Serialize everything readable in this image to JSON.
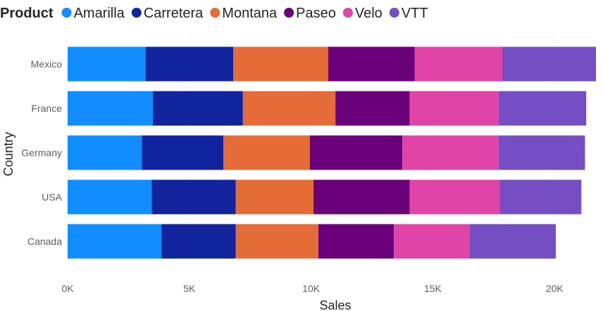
{
  "chart_data": {
    "type": "bar",
    "orientation": "horizontal",
    "stacked": true,
    "legend_title": "Product",
    "legend_position": "top-left",
    "categories": [
      "Mexico",
      "France",
      "Germany",
      "USA",
      "Canada"
    ],
    "series": [
      {
        "name": "Amarilla",
        "color": "#118DFF",
        "values": [
          3200,
          3500,
          3050,
          3450,
          3850
        ]
      },
      {
        "name": "Carretera",
        "color": "#12239E",
        "values": [
          3600,
          3700,
          3350,
          3450,
          3050
        ]
      },
      {
        "name": "Montana",
        "color": "#E66C37",
        "values": [
          3900,
          3800,
          3550,
          3200,
          3400
        ]
      },
      {
        "name": "Paseo",
        "color": "#6B007B",
        "values": [
          3550,
          3050,
          3800,
          3950,
          3100
        ]
      },
      {
        "name": "Velo",
        "color": "#E044A7",
        "values": [
          3600,
          3650,
          3950,
          3700,
          3100
        ]
      },
      {
        "name": "VTT",
        "color": "#744EC2",
        "values": [
          3850,
          3600,
          3550,
          3350,
          3550
        ]
      }
    ],
    "xlabel": "Sales",
    "ylabel": "Country",
    "xlim": [
      0,
      21700
    ],
    "x_ticks": [
      0,
      5000,
      10000,
      15000,
      20000
    ],
    "x_tick_labels": [
      "0K",
      "5K",
      "10K",
      "15K",
      "20K"
    ],
    "grid": true,
    "grid_color": "#e6e6e6"
  }
}
